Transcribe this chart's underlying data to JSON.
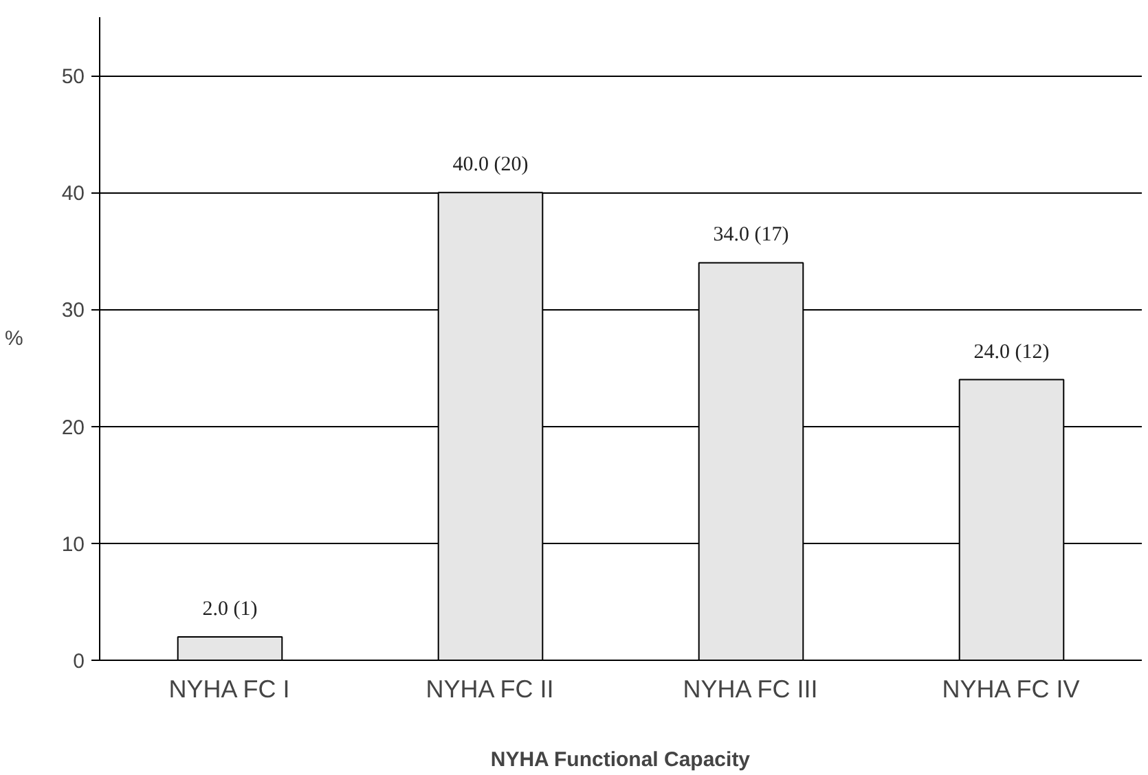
{
  "chart_data": {
    "type": "bar",
    "xlabel": "NYHA Functional Capacity",
    "ylabel": "%",
    "categories": [
      "NYHA FC I",
      "NYHA FC II",
      "NYHA FC III",
      "NYHA FC IV"
    ],
    "values": [
      2.0,
      40.0,
      34.0,
      24.0
    ],
    "color": "#e6e6e6",
    "value_labels": [
      "2.0 (1)",
      "40.0 (20)",
      "34.0 (17)",
      "24.0 (12)"
    ],
    "ylim": [
      0,
      55
    ],
    "yticks": [
      0,
      10,
      20,
      30,
      40,
      50
    ],
    "grid": "y"
  }
}
